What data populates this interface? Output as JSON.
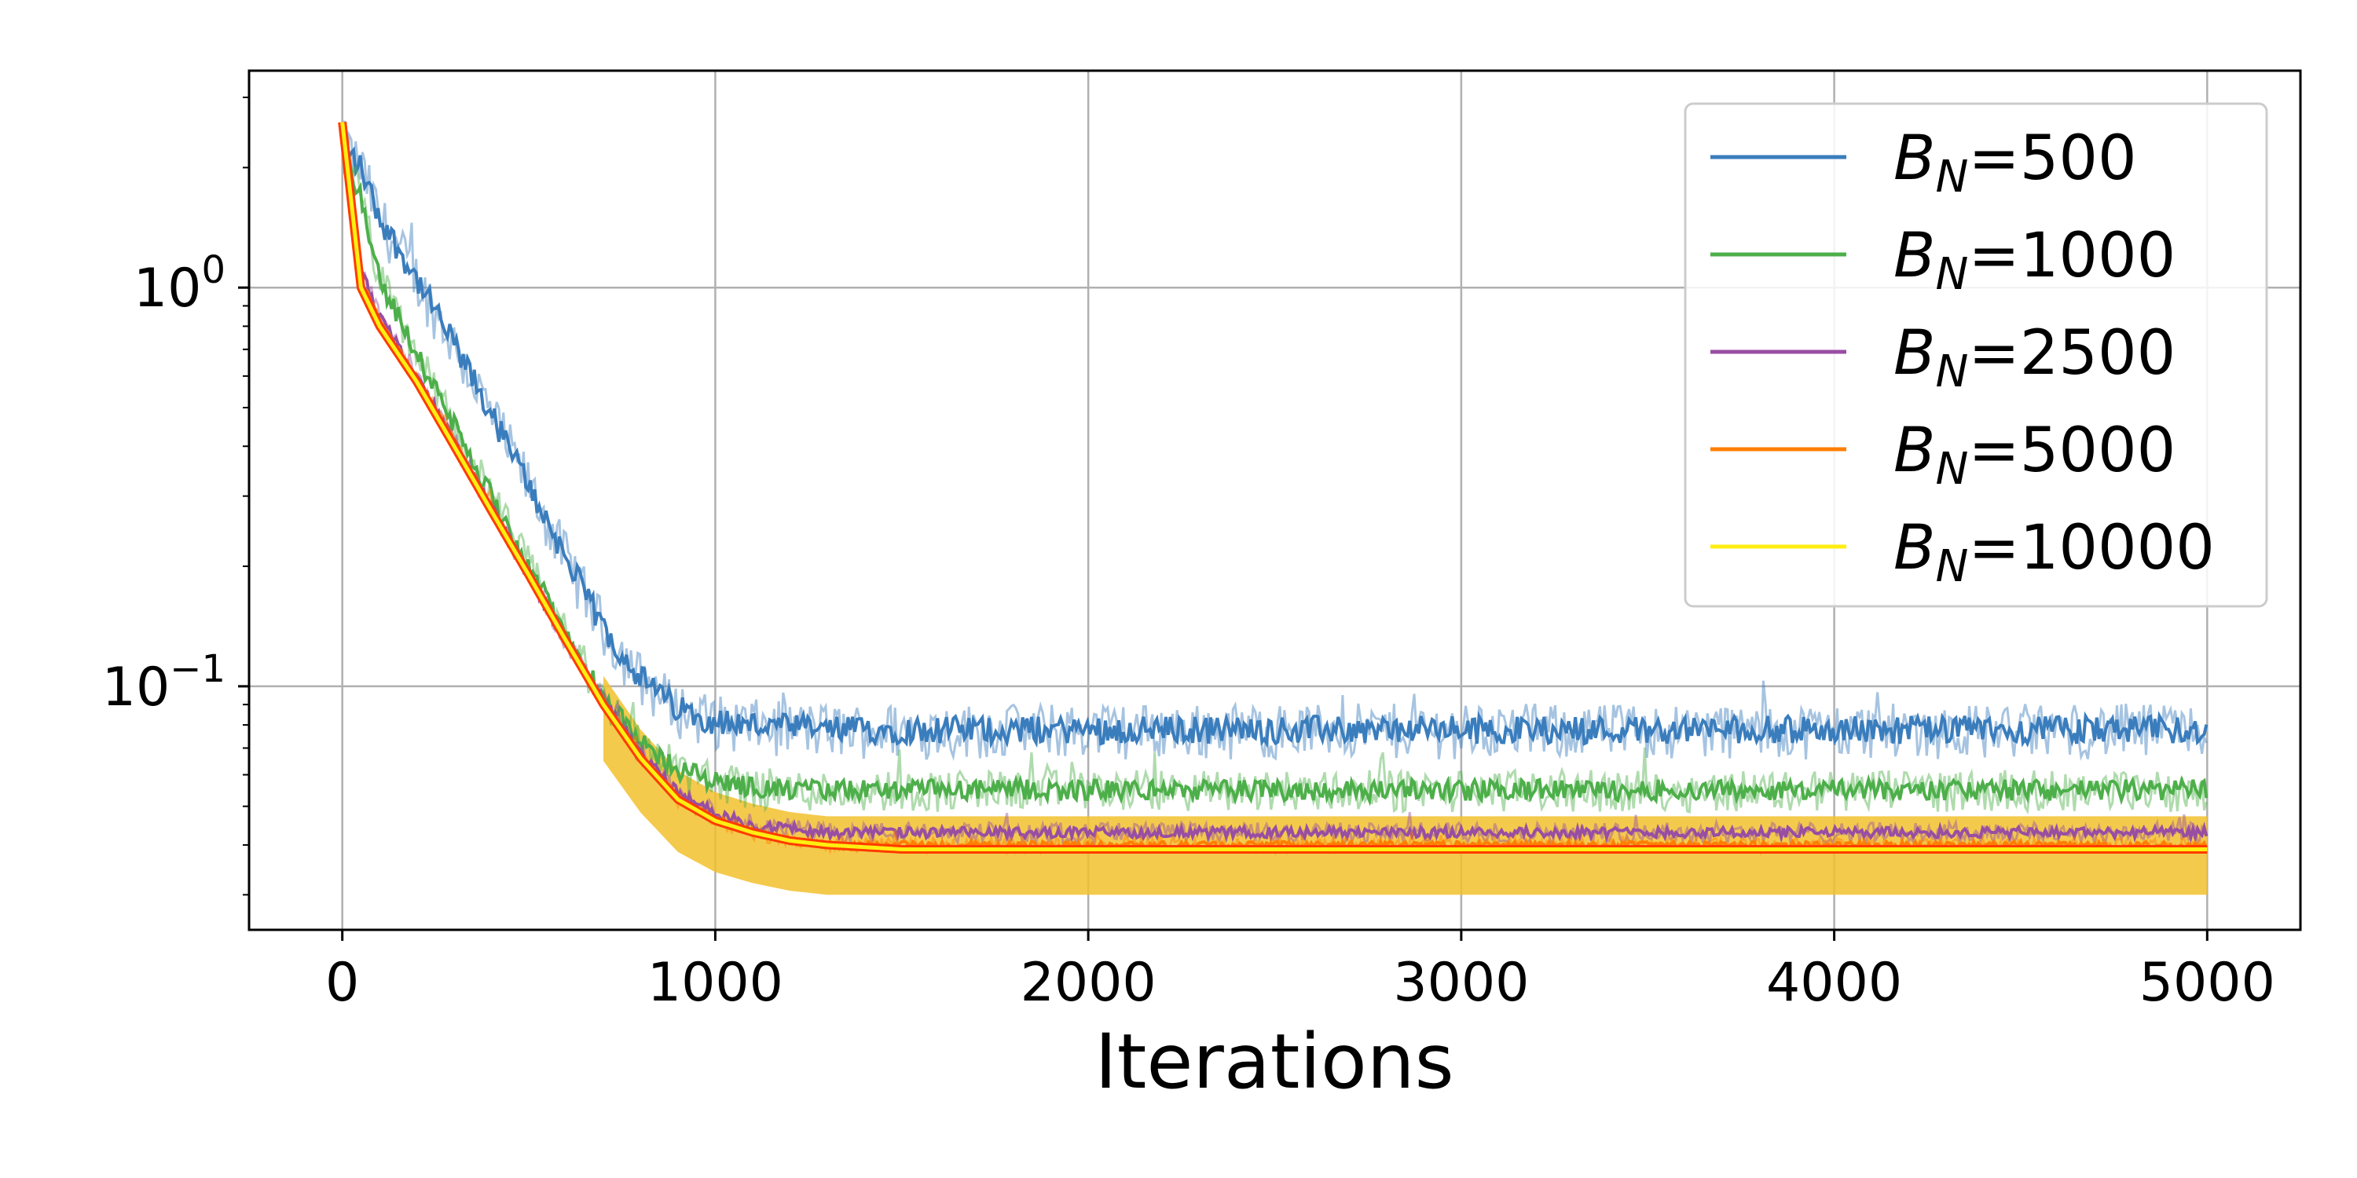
{
  "chart_data": {
    "type": "line",
    "title": "",
    "xlabel": "Iterations",
    "ylabel": "",
    "xlim": [
      -250,
      5250
    ],
    "ylim": [
      0.0245,
      3.5
    ],
    "yscale": "log",
    "x_ticks": [
      0,
      1000,
      2000,
      3000,
      4000,
      5000
    ],
    "x_tick_labels": [
      "0",
      "1000",
      "2000",
      "3000",
      "4000",
      "5000"
    ],
    "y_ticks": [
      {
        "value": 1,
        "base": "10",
        "exp": "0"
      },
      {
        "value": 0.1,
        "base": "10",
        "exp": "−1"
      }
    ],
    "grid": true,
    "legend_position": "upper right",
    "x": [
      0,
      50,
      100,
      200,
      300,
      400,
      500,
      600,
      700,
      800,
      900,
      1000,
      1100,
      1200,
      1300,
      1400,
      1500,
      1750,
      2000,
      2500,
      3000,
      4000,
      5000
    ],
    "series": [
      {
        "name": "B_N=500",
        "legend_base": "B",
        "legend_sub": "N",
        "legend_value": "=500",
        "color": "#3a7dbd",
        "noise": 0.16,
        "values": [
          2.3,
          2.0,
          1.5,
          1.05,
          0.72,
          0.48,
          0.32,
          0.21,
          0.14,
          0.105,
          0.088,
          0.082,
          0.08,
          0.079,
          0.078,
          0.078,
          0.078,
          0.078,
          0.078,
          0.078,
          0.078,
          0.078,
          0.078
        ]
      },
      {
        "name": "B_N=1000",
        "legend_base": "B",
        "legend_sub": "N",
        "legend_value": "=1000",
        "color": "#4daf4a",
        "noise": 0.12,
        "values": [
          2.2,
          1.7,
          1.05,
          0.68,
          0.45,
          0.3,
          0.2,
          0.135,
          0.094,
          0.072,
          0.062,
          0.058,
          0.056,
          0.055,
          0.055,
          0.055,
          0.055,
          0.055,
          0.055,
          0.055,
          0.055,
          0.055,
          0.055
        ]
      },
      {
        "name": "B_N=2500",
        "legend_base": "B",
        "legend_sub": "N",
        "legend_value": "=2500",
        "color": "#984ea3",
        "noise": 0.06,
        "values": [
          2.3,
          1.1,
          0.85,
          0.6,
          0.41,
          0.28,
          0.19,
          0.13,
          0.092,
          0.068,
          0.054,
          0.048,
          0.045,
          0.044,
          0.043,
          0.043,
          0.043,
          0.043,
          0.043,
          0.043,
          0.043,
          0.043,
          0.043
        ]
      },
      {
        "name": "B_N=5000",
        "legend_base": "B",
        "legend_sub": "N",
        "legend_value": "=5000",
        "color": "#ff7f00",
        "noise": 0.04,
        "values": [
          2.5,
          1.05,
          0.82,
          0.59,
          0.41,
          0.28,
          0.19,
          0.13,
          0.09,
          0.066,
          0.052,
          0.046,
          0.043,
          0.041,
          0.04,
          0.04,
          0.04,
          0.04,
          0.04,
          0.04,
          0.04,
          0.04,
          0.04
        ]
      },
      {
        "name": "B_N=10000",
        "legend_base": "B",
        "legend_sub": "N",
        "legend_value": "=10000",
        "color": "#ffee11",
        "noise": 0.0,
        "values": [
          2.6,
          1.0,
          0.8,
          0.58,
          0.4,
          0.275,
          0.19,
          0.13,
          0.09,
          0.066,
          0.052,
          0.046,
          0.043,
          0.041,
          0.04,
          0.0395,
          0.039,
          0.039,
          0.039,
          0.039,
          0.039,
          0.039,
          0.039
        ]
      }
    ],
    "band": {
      "color": "#f2c12e",
      "x_from": 700,
      "upper": 0.047,
      "lower": 0.03
    }
  }
}
